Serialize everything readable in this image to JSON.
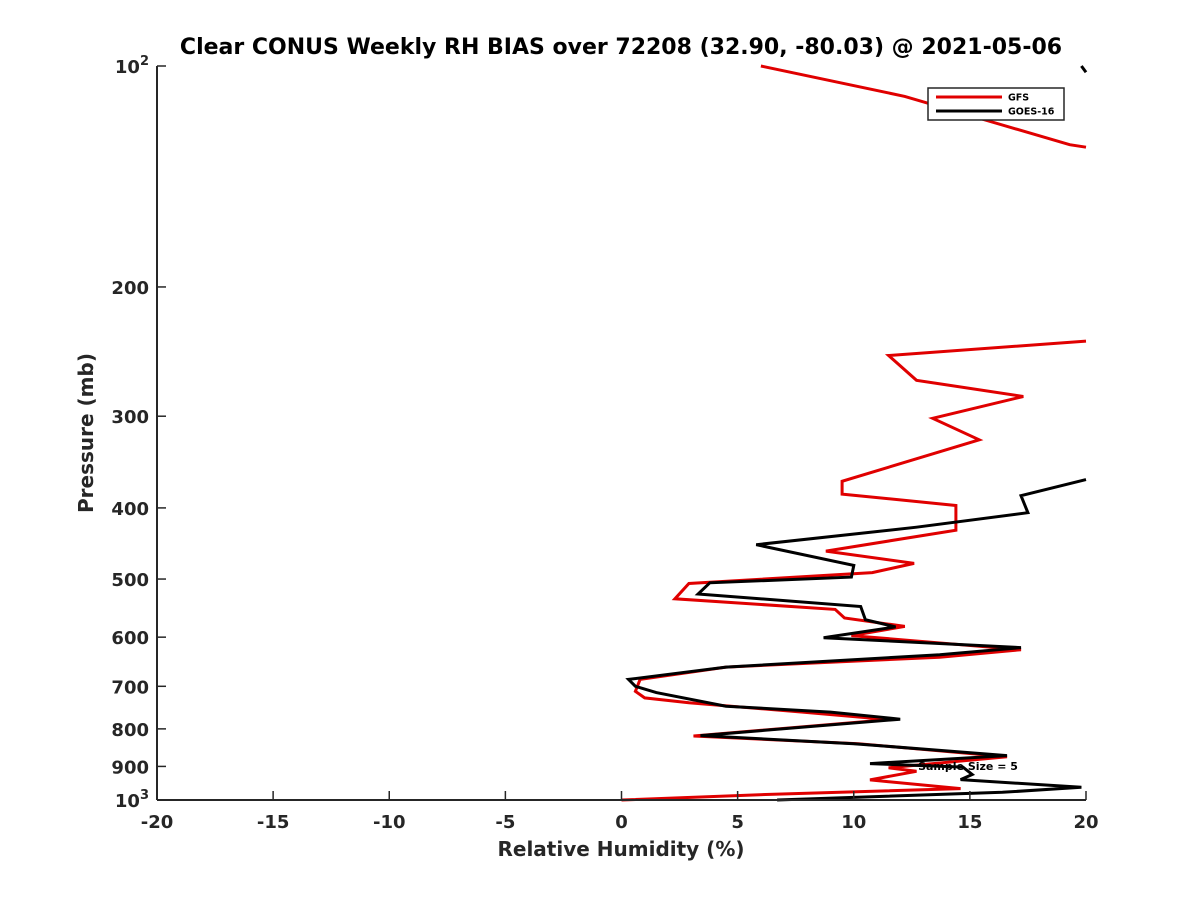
{
  "chart_data": {
    "type": "line",
    "title": "Clear CONUS Weekly RH BIAS over 72208 (32.90, -80.03) @ 2021-05-06",
    "xlabel": "Relative Humidity (%)",
    "ylabel": "Pressure (mb)",
    "xlim": [
      -20,
      20
    ],
    "ylim": [
      1000,
      100
    ],
    "y_scale": "log",
    "y_reversed": true,
    "grid": false,
    "legend_position": "top-right",
    "x_ticks": [
      "-20",
      "-15",
      "-10",
      "-5",
      "0",
      "5",
      "10",
      "15",
      "20"
    ],
    "y_ticks": [
      {
        "value": 100,
        "base": "10",
        "exp": "2"
      },
      {
        "value": 200,
        "label": "200"
      },
      {
        "value": 300,
        "label": "300"
      },
      {
        "value": 400,
        "label": "400"
      },
      {
        "value": 500,
        "label": "500"
      },
      {
        "value": 600,
        "label": "600"
      },
      {
        "value": 700,
        "label": "700"
      },
      {
        "value": 800,
        "label": "800"
      },
      {
        "value": 900,
        "label": "900"
      },
      {
        "value": 1000,
        "base": "10",
        "exp": "3"
      }
    ],
    "annotation": "Sample Size = 5",
    "series": [
      {
        "name": "GFS",
        "color": "#e00000",
        "points": [
          [
            6,
            100
          ],
          [
            12.2,
            110
          ],
          [
            19.3,
            128
          ],
          [
            20,
            129
          ],
          null,
          [
            20,
            237
          ],
          [
            11.5,
            248
          ],
          [
            12.7,
            268
          ],
          [
            17.3,
            282
          ],
          [
            13.4,
            302
          ],
          [
            15.4,
            323
          ],
          [
            9.5,
            368
          ],
          [
            9.5,
            383
          ],
          [
            14.4,
            397
          ],
          [
            14.4,
            429
          ],
          [
            8.8,
            458
          ],
          [
            12.6,
            476
          ],
          [
            10.8,
            490
          ],
          [
            2.9,
            507
          ],
          [
            2.3,
            532
          ],
          [
            9.2,
            550
          ],
          [
            9.6,
            565
          ],
          [
            12.2,
            580
          ],
          [
            9.9,
            597
          ],
          [
            17.2,
            624
          ],
          [
            13.7,
            639
          ],
          [
            4.5,
            659
          ],
          [
            0.8,
            685
          ],
          [
            0.6,
            711
          ],
          [
            1.0,
            726
          ],
          [
            2.9,
            737
          ],
          [
            7.8,
            759
          ],
          [
            11.5,
            777
          ],
          [
            3.1,
            818
          ],
          [
            10.2,
            838
          ],
          [
            16.6,
            873
          ],
          [
            11.5,
            904
          ],
          [
            12.7,
            914
          ],
          [
            10.7,
            939
          ],
          [
            14.6,
            965
          ],
          [
            6.2,
            983
          ],
          [
            0,
            1000
          ]
        ]
      },
      {
        "name": "GOES-16",
        "color": "#000000",
        "points": [
          [
            19.8,
            100
          ],
          [
            20,
            102
          ],
          null,
          [
            20,
            366
          ],
          [
            17.2,
            385
          ],
          [
            17.5,
            406
          ],
          [
            12.7,
            425
          ],
          [
            5.8,
            449
          ],
          [
            10.0,
            479
          ],
          [
            9.9,
            497
          ],
          [
            3.8,
            506
          ],
          [
            3.3,
            524
          ],
          [
            10.3,
            545
          ],
          [
            10.5,
            568
          ],
          [
            11.8,
            581
          ],
          [
            8.7,
            601
          ],
          [
            17.2,
            620
          ],
          [
            13.7,
            634
          ],
          [
            4.5,
            659
          ],
          [
            0.3,
            685
          ],
          [
            0.6,
            700
          ],
          [
            1.5,
            714
          ],
          [
            4.5,
            745
          ],
          [
            9.0,
            759
          ],
          [
            12.0,
            776
          ],
          [
            3.4,
            817
          ],
          [
            10.0,
            838
          ],
          [
            16.6,
            870
          ],
          [
            10.7,
            892
          ],
          [
            14.7,
            902
          ],
          [
            15.1,
            923
          ],
          [
            14.6,
            938
          ],
          [
            19.8,
            961
          ],
          [
            16.4,
            976
          ],
          [
            6.7,
            1000
          ]
        ]
      }
    ]
  }
}
